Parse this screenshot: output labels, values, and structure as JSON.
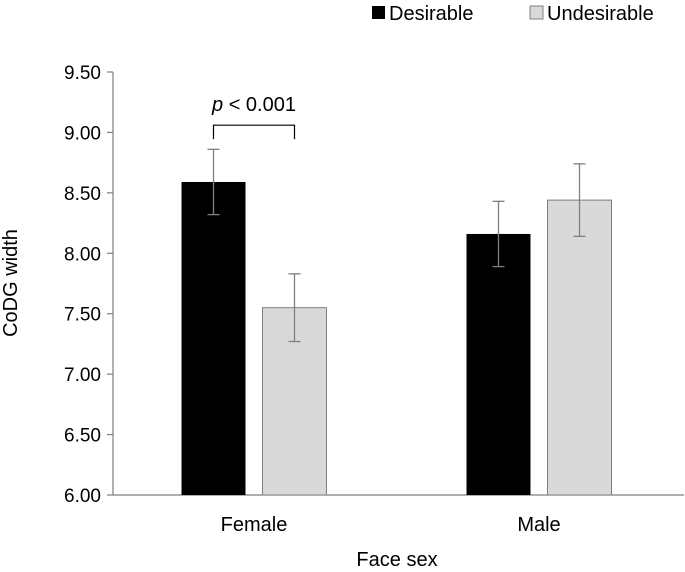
{
  "chart_data": {
    "type": "bar",
    "categories": [
      "Female",
      "Male"
    ],
    "series": [
      {
        "name": "Desirable",
        "values": [
          8.59,
          8.16
        ],
        "errors": [
          0.27,
          0.27
        ],
        "color": "#000000"
      },
      {
        "name": "Undesirable",
        "values": [
          7.55,
          8.44
        ],
        "errors": [
          0.28,
          0.3
        ],
        "color": "#d9d9d9"
      }
    ],
    "title": "",
    "xlabel": "Face sex",
    "ylabel": "CoDG width",
    "ylim": [
      6.0,
      9.5
    ],
    "yticks": [
      "6.00",
      "6.50",
      "7.00",
      "7.50",
      "8.00",
      "8.50",
      "9.00",
      "9.50"
    ],
    "grid": false,
    "legend_position": "top-right",
    "annotation": {
      "p_symbol": "p",
      "text": " < 0.001",
      "category": "Female",
      "y_level": 9.06
    }
  }
}
